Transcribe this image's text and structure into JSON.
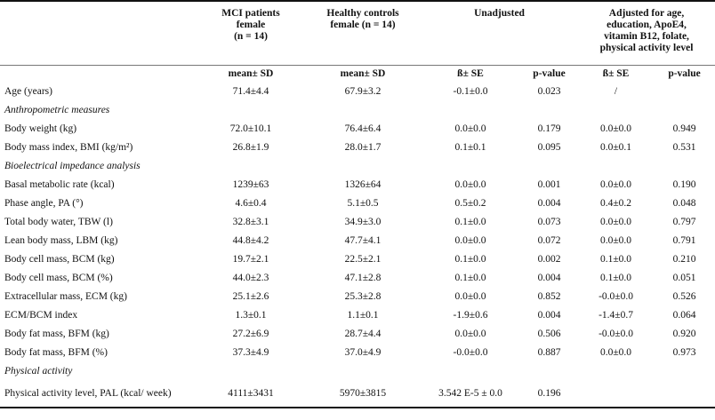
{
  "headers": {
    "mci": [
      "MCI patients",
      "female",
      "(n = 14)"
    ],
    "hc": [
      "Healthy controls",
      "female (n = 14)"
    ],
    "unadj": [
      "Unadjusted"
    ],
    "adj": [
      "Adjusted for age,",
      "education, ApoE4,",
      "vitamin B12, folate,",
      "physical activity level"
    ]
  },
  "subheaders": {
    "mci": "mean± SD",
    "hc": "mean± SD",
    "unadj_beta": "ß± SE",
    "unadj_p": "p-value",
    "adj_beta": "ß± SE",
    "adj_p": "p-value"
  },
  "rows": [
    {
      "type": "data",
      "label": "Age (years)",
      "mci": "71.4±4.4",
      "hc": "67.9±3.2",
      "ub": "-0.1±0.0",
      "up": "0.023",
      "ab": "/",
      "ap": ""
    },
    {
      "type": "section",
      "label": "Anthropometric measures"
    },
    {
      "type": "data",
      "label": "Body weight (kg)",
      "mci": "72.0±10.1",
      "hc": "76.4±6.4",
      "ub": "0.0±0.0",
      "up": "0.179",
      "ab": "0.0±0.0",
      "ap": "0.949"
    },
    {
      "type": "data",
      "label": "Body mass index, BMI (kg/m²)",
      "mci": "26.8±1.9",
      "hc": "28.0±1.7",
      "ub": "0.1±0.1",
      "up": "0.095",
      "ab": "0.0±0.1",
      "ap": "0.531"
    },
    {
      "type": "section",
      "label": "Bioelectrical impedance analysis"
    },
    {
      "type": "data",
      "label": "Basal metabolic rate (kcal)",
      "mci": "1239±63",
      "hc": "1326±64",
      "ub": "0.0±0.0",
      "up": "0.001",
      "ab": "0.0±0.0",
      "ap": "0.190"
    },
    {
      "type": "data",
      "label": "Phase angle, PA (°)",
      "mci": "4.6±0.4",
      "hc": "5.1±0.5",
      "ub": "0.5±0.2",
      "up": "0.004",
      "ab": "0.4±0.2",
      "ap": "0.048"
    },
    {
      "type": "data",
      "label": "Total body water, TBW (l)",
      "mci": "32.8±3.1",
      "hc": "34.9±3.0",
      "ub": "0.1±0.0",
      "up": "0.073",
      "ab": "0.0±0.0",
      "ap": "0.797"
    },
    {
      "type": "data",
      "label": "Lean body mass, LBM (kg)",
      "mci": "44.8±4.2",
      "hc": "47.7±4.1",
      "ub": "0.0±0.0",
      "up": "0.072",
      "ab": "0.0±0.0",
      "ap": "0.791"
    },
    {
      "type": "data",
      "label": "Body cell mass, BCM (kg)",
      "mci": "19.7±2.1",
      "hc": "22.5±2.1",
      "ub": "0.1±0.0",
      "up": "0.002",
      "ab": "0.1±0.0",
      "ap": "0.210"
    },
    {
      "type": "data",
      "label": "Body cell mass, BCM (%)",
      "mci": "44.0±2.3",
      "hc": "47.1±2.8",
      "ub": "0.1±0.0",
      "up": "0.004",
      "ab": "0.1±0.0",
      "ap": "0.051"
    },
    {
      "type": "data",
      "label": "Extracellular mass, ECM (kg)",
      "mci": "25.1±2.6",
      "hc": "25.3±2.8",
      "ub": "0.0±0.0",
      "up": "0.852",
      "ab": "-0.0±0.0",
      "ap": "0.526"
    },
    {
      "type": "data",
      "label": "ECM/BCM index",
      "mci": "1.3±0.1",
      "hc": "1.1±0.1",
      "ub": "-1.9±0.6",
      "up": "0.004",
      "ab": "-1.4±0.7",
      "ap": "0.064"
    },
    {
      "type": "data",
      "label": "Body fat mass, BFM (kg)",
      "mci": "27.2±6.9",
      "hc": "28.7±4.4",
      "ub": "0.0±0.0",
      "up": "0.506",
      "ab": "-0.0±0.0",
      "ap": "0.920"
    },
    {
      "type": "data",
      "label": "Body fat mass, BFM (%)",
      "mci": "37.3±4.9",
      "hc": "37.0±4.9",
      "ub": "-0.0±0.0",
      "up": "0.887",
      "ab": "0.0±0.0",
      "ap": "0.973"
    },
    {
      "type": "section",
      "label": "Physical activity"
    },
    {
      "type": "last",
      "label": "Physical activity level, PAL (kcal/ week)",
      "mci": "4111±3431",
      "hc": "5970±3815",
      "ub": "3.542 E-5 ± 0.0",
      "up": "0.196",
      "ab": "",
      "ap": ""
    }
  ]
}
